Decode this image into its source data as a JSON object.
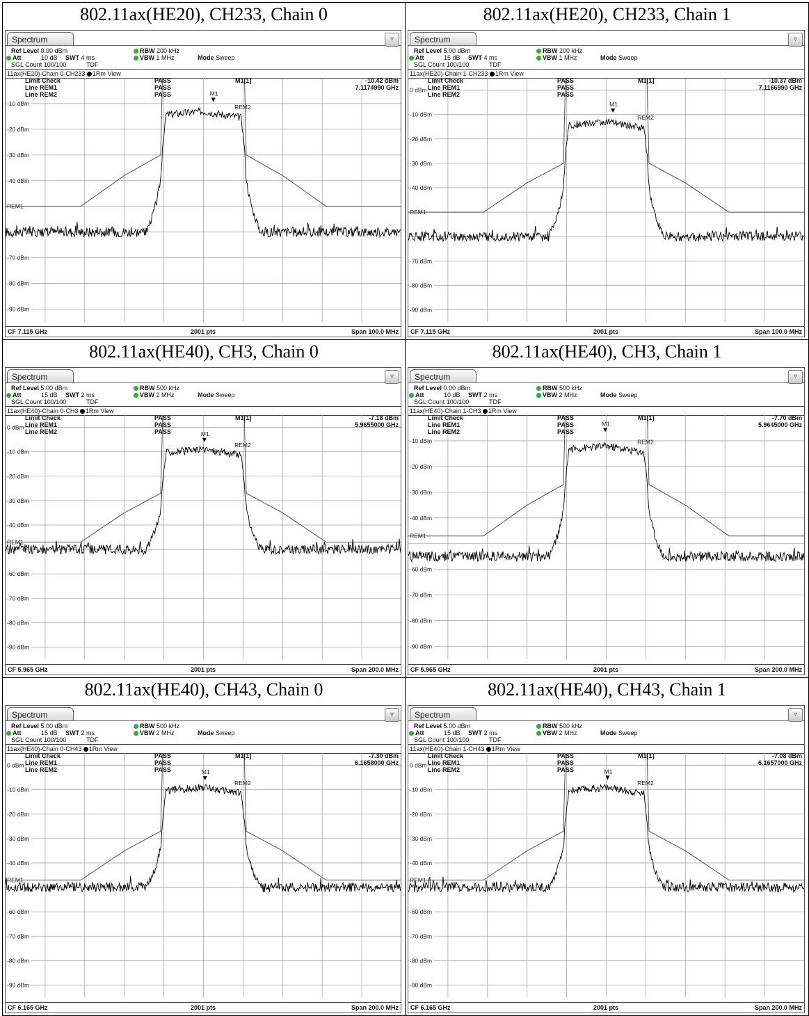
{
  "colors": {
    "trace": "#000000",
    "grid": "#a8a8a8",
    "limit": "#505050",
    "status_dot": "#2fae3a"
  },
  "icons": {
    "tab_sheet": "scroll-down-icon"
  },
  "labels": {
    "tab": "Spectrum",
    "ref_level": "Ref Level",
    "att": "Att",
    "sgl_count": "SGL Count",
    "tdf": "TDF",
    "rbw": "RBW",
    "vbw": "VBW",
    "swt": "SWT",
    "mode": "Mode",
    "mode_value": "Sweep",
    "view": "1Rm View",
    "limit_check": "Limit Check",
    "line1": "Line REM1",
    "line2": "Line REM2",
    "pass": "PASS",
    "marker": "M1[1]",
    "pts": "2001 pts",
    "rem1": "REM1",
    "rem2": "REM2",
    "m1": "M1"
  },
  "panels": [
    {
      "title": "802.11ax(HE20), CH233, Chain 0",
      "trace_name": "11ax(HE20)-Chain 0-CH233",
      "ref_level": "0.00 dBm",
      "att": "10 dB",
      "swt": "4 ms",
      "rbw": "200 kHz",
      "vbw": "1 MHz",
      "count": "100/100",
      "marker_level": "-10.42 dBm",
      "marker_freq": "7.1174990 GHz",
      "cf": "CF 7.115 GHz",
      "span": "Span 100.0 MHz"
    },
    {
      "title": "802.11ax(HE20), CH233, Chain 1",
      "trace_name": "11ax(HE20)-Chain 1-CH233",
      "ref_level": "5.00 dBm",
      "att": "15 dB",
      "swt": "4 ms",
      "rbw": "200 kHz",
      "vbw": "1 MHz",
      "count": "100/100",
      "marker_level": "-10.37 dBm",
      "marker_freq": "7.1166990 GHz",
      "cf": "CF 7.115 GHz",
      "span": "Span 100.0 MHz"
    },
    {
      "title": "802.11ax(HE40), CH3, Chain 0",
      "trace_name": "11ax(HE40)-Chain 0-CH3",
      "ref_level": "5.00 dBm",
      "att": "15 dB",
      "swt": "2 ms",
      "rbw": "500 kHz",
      "vbw": "2 MHz",
      "count": "100/100",
      "marker_level": "-7.18 dBm",
      "marker_freq": "5.9655000 GHz",
      "cf": "CF 5.965 GHz",
      "span": "Span 200.0 MHz"
    },
    {
      "title": "802.11ax(HE40), CH3, Chain 1",
      "trace_name": "11ax(HE40)-Chain 1-CH3",
      "ref_level": "0.00 dBm",
      "att": "10 dB",
      "swt": "2 ms",
      "rbw": "500 kHz",
      "vbw": "2 MHz",
      "count": "100/100",
      "marker_level": "-7.70 dBm",
      "marker_freq": "5.9645000 GHz",
      "cf": "CF 5.965 GHz",
      "span": "Span 200.0 MHz"
    },
    {
      "title": "802.11ax(HE40), CH43, Chain 0",
      "trace_name": "11ax(HE40)-Chain 0-CH43",
      "ref_level": "5.00 dBm",
      "att": "15 dB",
      "swt": "2 ms",
      "rbw": "500 kHz",
      "vbw": "2 MHz",
      "count": "100/100",
      "marker_level": "-7.30 dBm",
      "marker_freq": "6.1658000 GHz",
      "cf": "CF 6.165 GHz",
      "span": "Span 200.0 MHz"
    },
    {
      "title": "802.11ax(HE40), CH43, Chain 1",
      "trace_name": "11ax(HE40)-Chain 1-CH43",
      "ref_level": "5.00 dBm",
      "att": "15 dB",
      "swt": "2 ms",
      "rbw": "500 kHz",
      "vbw": "2 MHz",
      "count": "100/100",
      "marker_level": "-7.08 dBm",
      "marker_freq": "6.1657000 GHz",
      "cf": "CF 6.165 GHz",
      "span": "Span 200.0 MHz"
    }
  ],
  "chart_data": [
    {
      "type": "line",
      "title": "802.11ax(HE20), CH233, Chain 0",
      "ylim": [
        -95,
        0
      ],
      "y_ticks": [
        "-10 dBm",
        "-20 dBm",
        "-30 dBm",
        "-40 dBm",
        "REM1",
        "-70 dBm",
        "-80 dBm",
        "-90 dBm"
      ],
      "center_ghz": 7.115,
      "span_mhz": 100,
      "points": 2001,
      "marker": {
        "name": "M1",
        "freq_ghz": 7.117499,
        "level_dbm": -10.42
      },
      "floor_dbm": -60,
      "top_dbm": -13,
      "occupied_mhz": 20,
      "limit_line": {
        "name": "REM1",
        "outer_dbm": -50,
        "mid_dbm": -38,
        "edge_dbm": -30
      },
      "limit_check": "PASS",
      "grid": true
    },
    {
      "type": "line",
      "title": "802.11ax(HE20), CH233, Chain 1",
      "ylim": [
        -95,
        5
      ],
      "y_ticks": [
        "0 dBm",
        "-10 dBm",
        "-20 dBm",
        "-30 dBm",
        "-40 dBm",
        "REM1",
        "-70 dBm",
        "-80 dBm",
        "-90 dBm"
      ],
      "center_ghz": 7.115,
      "span_mhz": 100,
      "points": 2001,
      "marker": {
        "name": "M1",
        "freq_ghz": 7.116699,
        "level_dbm": -10.37
      },
      "floor_dbm": -60,
      "top_dbm": -13,
      "occupied_mhz": 20,
      "limit_line": {
        "name": "REM1",
        "outer_dbm": -50,
        "mid_dbm": -38,
        "edge_dbm": -30
      },
      "limit_check": "PASS",
      "grid": true
    },
    {
      "type": "line",
      "title": "802.11ax(HE40), CH3, Chain 0",
      "ylim": [
        -95,
        5
      ],
      "y_ticks": [
        "0 dBm",
        "-10 dBm",
        "-20 dBm",
        "-30 dBm",
        "-40 dBm",
        "REM1",
        "-60 dBm",
        "-70 dBm",
        "-80 dBm",
        "-90 dBm"
      ],
      "center_ghz": 5.965,
      "span_mhz": 200,
      "points": 2001,
      "marker": {
        "name": "M1",
        "freq_ghz": 5.9655,
        "level_dbm": -7.18
      },
      "floor_dbm": -50,
      "top_dbm": -9,
      "occupied_mhz": 40,
      "limit_line": {
        "name": "REM1",
        "outer_dbm": -47,
        "mid_dbm": -35,
        "edge_dbm": -27
      },
      "limit_check": "PASS",
      "grid": true
    },
    {
      "type": "line",
      "title": "802.11ax(HE40), CH3, Chain 1",
      "ylim": [
        -95,
        0
      ],
      "y_ticks": [
        "-10 dBm",
        "-20 dBm",
        "-30 dBm",
        "-40 dBm",
        "REM1",
        "-60 dBm",
        "-70 dBm",
        "-80 dBm",
        "-90 dBm"
      ],
      "center_ghz": 5.965,
      "span_mhz": 200,
      "points": 2001,
      "marker": {
        "name": "M1",
        "freq_ghz": 5.9645,
        "level_dbm": -7.7
      },
      "floor_dbm": -55,
      "top_dbm": -12,
      "occupied_mhz": 40,
      "limit_line": {
        "name": "REM1",
        "outer_dbm": -47,
        "mid_dbm": -35,
        "edge_dbm": -27
      },
      "limit_check": "PASS",
      "grid": true
    },
    {
      "type": "line",
      "title": "802.11ax(HE40), CH43, Chain 0",
      "ylim": [
        -95,
        5
      ],
      "y_ticks": [
        "0 dBm",
        "-10 dBm",
        "-20 dBm",
        "-30 dBm",
        "-40 dBm",
        "REM1",
        "-60 dBm",
        "-70 dBm",
        "-80 dBm",
        "-90 dBm"
      ],
      "center_ghz": 6.165,
      "span_mhz": 200,
      "points": 2001,
      "marker": {
        "name": "M1",
        "freq_ghz": 6.1658,
        "level_dbm": -7.3
      },
      "floor_dbm": -50,
      "top_dbm": -9,
      "occupied_mhz": 40,
      "limit_line": {
        "name": "REM1",
        "outer_dbm": -47,
        "mid_dbm": -35,
        "edge_dbm": -27
      },
      "limit_check": "PASS",
      "grid": true
    },
    {
      "type": "line",
      "title": "802.11ax(HE40), CH43, Chain 1",
      "ylim": [
        -95,
        5
      ],
      "y_ticks": [
        "0 dBm",
        "-10 dBm",
        "-20 dBm",
        "-30 dBm",
        "-40 dBm",
        "REM1",
        "-60 dBm",
        "-70 dBm",
        "-80 dBm",
        "-90 dBm"
      ],
      "center_ghz": 6.165,
      "span_mhz": 200,
      "points": 2001,
      "marker": {
        "name": "M1",
        "freq_ghz": 6.1657,
        "level_dbm": -7.08
      },
      "floor_dbm": -50,
      "top_dbm": -9,
      "occupied_mhz": 40,
      "limit_line": {
        "name": "REM1",
        "outer_dbm": -47,
        "mid_dbm": -35,
        "edge_dbm": -27
      },
      "limit_check": "PASS",
      "grid": true
    }
  ]
}
